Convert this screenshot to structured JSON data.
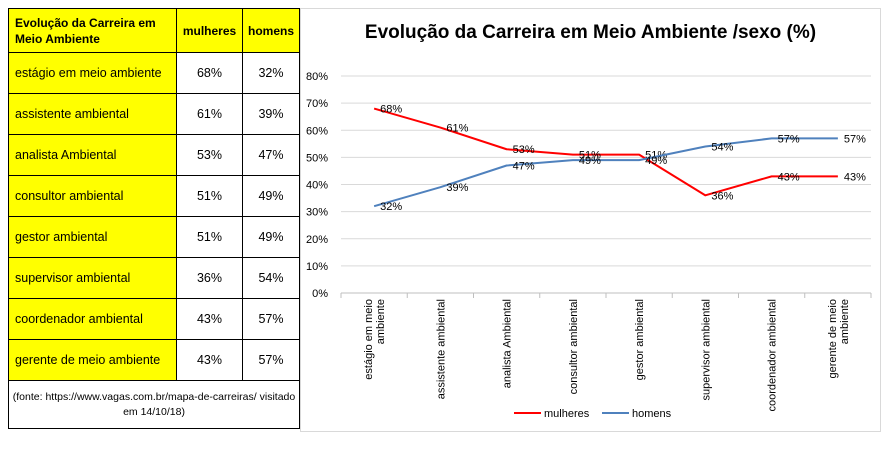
{
  "table": {
    "header": {
      "category": "Evolução da Carreira em Meio Ambiente",
      "women": "mulheres",
      "men": "homens"
    },
    "rows": [
      {
        "category": "estágio em meio ambiente",
        "women": "68%",
        "men": "32%"
      },
      {
        "category": "assistente ambiental",
        "women": "61%",
        "men": "39%"
      },
      {
        "category": "analista Ambiental",
        "women": "53%",
        "men": "47%"
      },
      {
        "category": "consultor ambiental",
        "women": "51%",
        "men": "49%"
      },
      {
        "category": "gestor ambiental",
        "women": "51%",
        "men": "49%"
      },
      {
        "category": "supervisor ambiental",
        "women": "36%",
        "men": "54%"
      },
      {
        "category": "coordenador ambiental",
        "women": "43%",
        "men": "57%"
      },
      {
        "category": "gerente de meio ambiente",
        "women": "43%",
        "men": "57%"
      }
    ],
    "source": "(fonte: https://www.vagas.com.br/mapa-de-carreiras/ visitado em 14/10/18)"
  },
  "chart_data": {
    "type": "line",
    "title": "Evolução da Carreira em Meio Ambiente /sexo (%)",
    "categories": [
      "estágio em meio ambiente",
      "assistente ambiental",
      "analista Ambiental",
      "consultor ambiental",
      "gestor ambiental",
      "supervisor ambiental",
      "coordenador ambiental",
      "gerente de meio ambiente"
    ],
    "series": [
      {
        "name": "mulheres",
        "color": "#ff0000",
        "values": [
          68,
          61,
          53,
          51,
          51,
          36,
          43,
          43
        ],
        "labels": [
          "68%",
          "61%",
          "53%",
          "51%",
          "51%",
          "36%",
          "43%",
          "43%"
        ]
      },
      {
        "name": "homens",
        "color": "#4f81bd",
        "values": [
          32,
          39,
          47,
          49,
          49,
          54,
          57,
          57
        ],
        "labels": [
          "32%",
          "39%",
          "47%",
          "49%",
          "49%",
          "54%",
          "57%",
          "57%"
        ]
      }
    ],
    "ylim": [
      0,
      80
    ],
    "yticks": [
      "0%",
      "10%",
      "20%",
      "30%",
      "40%",
      "50%",
      "60%",
      "70%",
      "80%"
    ],
    "legend": "bottom",
    "grid": true
  }
}
